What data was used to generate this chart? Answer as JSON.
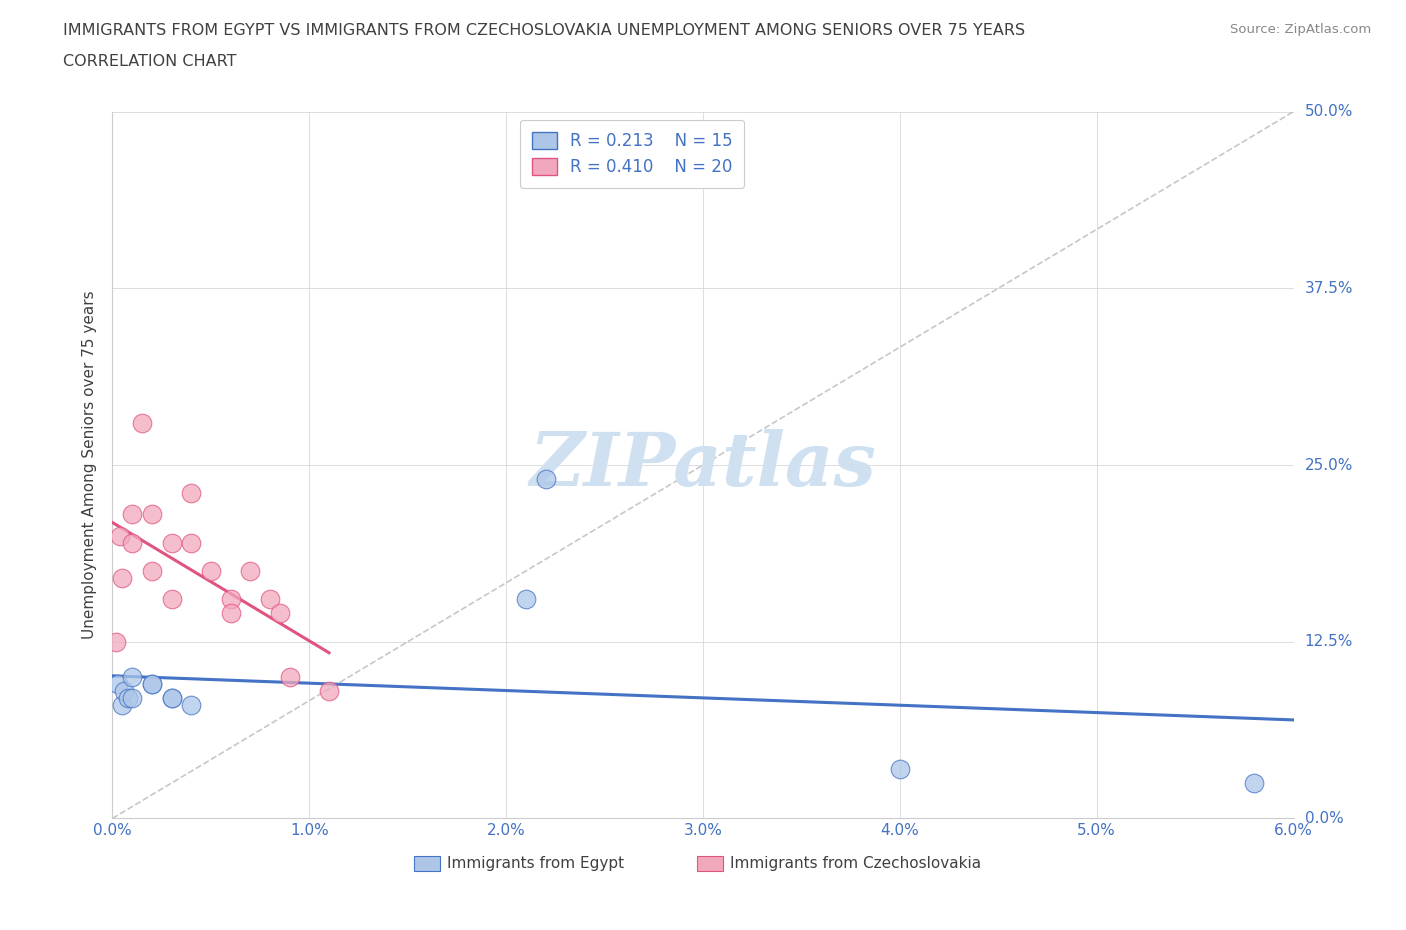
{
  "title_line1": "IMMIGRANTS FROM EGYPT VS IMMIGRANTS FROM CZECHOSLOVAKIA UNEMPLOYMENT AMONG SENIORS OVER 75 YEARS",
  "title_line2": "CORRELATION CHART",
  "source": "Source: ZipAtlas.com",
  "ylabel_label": "Unemployment Among Seniors over 75 years",
  "legend_label1": "Immigrants from Egypt",
  "legend_label2": "Immigrants from Czechoslovakia",
  "R1": 0.213,
  "N1": 15,
  "R2": 0.41,
  "N2": 20,
  "color1": "#adc6e8",
  "color2": "#f2a8bc",
  "line_color1": "#4472c4",
  "line_color2": "#e05580",
  "title_color": "#404040",
  "tick_color": "#4472c4",
  "watermark_color": "#cfe0f0",
  "xlim": [
    0.0,
    0.06
  ],
  "ylim": [
    0.0,
    0.5
  ],
  "xtick_vals": [
    0.0,
    0.01,
    0.02,
    0.03,
    0.04,
    0.05,
    0.06
  ],
  "ytick_vals": [
    0.0,
    0.125,
    0.25,
    0.375,
    0.5
  ],
  "ytick_labels": [
    "0.0%",
    "12.5%",
    "25.0%",
    "37.5%",
    "50.0%"
  ],
  "xtick_labels": [
    "0.0%",
    "1.0%",
    "2.0%",
    "3.0%",
    "4.0%",
    "5.0%",
    "6.0%"
  ],
  "egypt_x": [
    0.0003,
    0.0005,
    0.0006,
    0.0008,
    0.001,
    0.001,
    0.002,
    0.002,
    0.003,
    0.003,
    0.004,
    0.021,
    0.022,
    0.04,
    0.058
  ],
  "egypt_y": [
    0.095,
    0.08,
    0.09,
    0.085,
    0.1,
    0.085,
    0.095,
    0.095,
    0.085,
    0.085,
    0.08,
    0.155,
    0.24,
    0.035,
    0.025
  ],
  "czech_x": [
    0.0002,
    0.0004,
    0.0005,
    0.001,
    0.001,
    0.0015,
    0.002,
    0.002,
    0.003,
    0.003,
    0.004,
    0.004,
    0.005,
    0.006,
    0.006,
    0.007,
    0.008,
    0.0085,
    0.009,
    0.011
  ],
  "czech_y": [
    0.125,
    0.2,
    0.17,
    0.215,
    0.195,
    0.28,
    0.215,
    0.175,
    0.195,
    0.155,
    0.23,
    0.195,
    0.175,
    0.155,
    0.145,
    0.175,
    0.155,
    0.145,
    0.1,
    0.09
  ],
  "bubble_size": 180,
  "diag_line_x": [
    0.0,
    0.06
  ],
  "diag_line_y": [
    0.0,
    0.5
  ]
}
